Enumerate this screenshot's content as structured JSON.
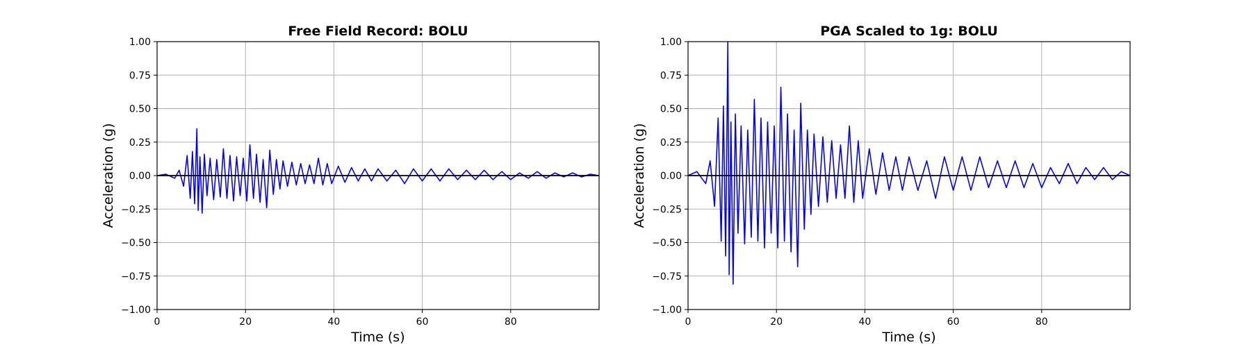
{
  "chart_data": [
    {
      "type": "line",
      "title": "Free Field Record: BOLU",
      "xlabel": "Time (s)",
      "ylabel": "Acceleration (g)",
      "xlim": [
        0,
        100
      ],
      "ylim": [
        -1.0,
        1.0
      ],
      "xticks": [
        0,
        20,
        40,
        60,
        80
      ],
      "xtick_labels": [
        "0",
        "20",
        "40",
        "60",
        "80"
      ],
      "yticks": [
        -1.0,
        -0.75,
        -0.5,
        -0.25,
        0.0,
        0.25,
        0.5,
        0.75,
        1.0
      ],
      "ytick_labels": [
        "−1.00",
        "−0.75",
        "−0.50",
        "−0.25",
        "0.00",
        "0.25",
        "0.50",
        "0.75",
        "1.00"
      ],
      "grid": true,
      "series": [
        {
          "color": "#0000ff",
          "x": [
            0,
            2,
            4,
            5,
            6,
            6.8,
            7.5,
            8,
            8.5,
            9,
            9.3,
            9.7,
            10.2,
            10.7,
            11.3,
            12,
            12.8,
            13.5,
            14.3,
            15,
            15.8,
            16.5,
            17.3,
            18,
            18.8,
            19.5,
            20.3,
            21,
            21.8,
            22.5,
            23.3,
            24,
            24.8,
            25.5,
            26.3,
            27,
            27.8,
            28.5,
            29.5,
            30.5,
            31.5,
            32.5,
            33.5,
            34.5,
            35.5,
            36.5,
            37.5,
            38.5,
            39.5,
            41,
            42.5,
            44,
            45.5,
            47,
            48.5,
            50,
            52,
            54,
            56,
            58,
            60,
            62,
            64,
            66,
            68,
            70,
            72,
            74,
            76,
            78,
            80,
            82,
            84,
            86,
            88,
            90,
            92,
            94,
            96,
            98,
            100
          ],
          "y": [
            0,
            0.01,
            -0.02,
            0.04,
            -0.08,
            0.15,
            -0.17,
            0.18,
            -0.21,
            0.35,
            -0.26,
            0.14,
            -0.28,
            0.16,
            -0.15,
            0.13,
            -0.18,
            0.12,
            -0.16,
            0.2,
            -0.17,
            0.15,
            -0.19,
            0.14,
            -0.15,
            0.13,
            -0.19,
            0.23,
            -0.17,
            0.16,
            -0.2,
            0.12,
            -0.24,
            0.19,
            -0.14,
            0.12,
            -0.1,
            0.11,
            -0.08,
            0.1,
            -0.07,
            0.09,
            -0.06,
            0.08,
            -0.06,
            0.13,
            -0.07,
            0.09,
            -0.06,
            0.07,
            -0.05,
            0.06,
            -0.04,
            0.05,
            -0.04,
            0.05,
            -0.04,
            0.04,
            -0.06,
            0.05,
            -0.04,
            0.05,
            -0.04,
            0.05,
            -0.03,
            0.04,
            -0.03,
            0.04,
            -0.03,
            0.03,
            -0.03,
            0.02,
            -0.02,
            0.03,
            -0.02,
            0.02,
            -0.01,
            0.02,
            -0.01,
            0.01,
            0
          ]
        }
      ]
    },
    {
      "type": "line",
      "title": "PGA Scaled to 1g: BOLU",
      "xlabel": "Time (s)",
      "ylabel": "Acceleration (g)",
      "xlim": [
        0,
        100
      ],
      "ylim": [
        -1.0,
        1.0
      ],
      "xticks": [
        0,
        20,
        40,
        60,
        80
      ],
      "xtick_labels": [
        "0",
        "20",
        "40",
        "60",
        "80"
      ],
      "yticks": [
        -1.0,
        -0.75,
        -0.5,
        -0.25,
        0.0,
        0.25,
        0.5,
        0.75,
        1.0
      ],
      "ytick_labels": [
        "−1.00",
        "−0.75",
        "−0.50",
        "−0.25",
        "0.00",
        "0.25",
        "0.50",
        "0.75",
        "1.00"
      ],
      "grid": true,
      "series": [
        {
          "color": "#0000ff",
          "x": [
            0,
            2,
            4,
            5,
            6,
            6.8,
            7.5,
            8,
            8.5,
            9,
            9.3,
            9.7,
            10.2,
            10.7,
            11.3,
            12,
            12.8,
            13.5,
            14.3,
            15,
            15.8,
            16.5,
            17.3,
            18,
            18.8,
            19.5,
            20.3,
            21,
            21.8,
            22.5,
            23.3,
            24,
            24.8,
            25.5,
            26.3,
            27,
            27.8,
            28.5,
            29.5,
            30.5,
            31.5,
            32.5,
            33.5,
            34.5,
            35.5,
            36.5,
            37.5,
            38.5,
            39.5,
            41,
            42.5,
            44,
            45.5,
            47,
            48.5,
            50,
            52,
            54,
            56,
            58,
            60,
            62,
            64,
            66,
            68,
            70,
            72,
            74,
            76,
            78,
            80,
            82,
            84,
            86,
            88,
            90,
            92,
            94,
            96,
            98,
            100
          ],
          "y": [
            0,
            0.03,
            -0.06,
            0.11,
            -0.23,
            0.43,
            -0.49,
            0.52,
            -0.6,
            1.0,
            -0.74,
            0.4,
            -0.81,
            0.46,
            -0.43,
            0.37,
            -0.51,
            0.34,
            -0.46,
            0.57,
            -0.49,
            0.43,
            -0.54,
            0.4,
            -0.43,
            0.37,
            -0.54,
            0.66,
            -0.49,
            0.46,
            -0.57,
            0.34,
            -0.68,
            0.54,
            -0.4,
            0.34,
            -0.29,
            0.31,
            -0.23,
            0.29,
            -0.2,
            0.26,
            -0.17,
            0.23,
            -0.17,
            0.37,
            -0.2,
            0.26,
            -0.17,
            0.2,
            -0.14,
            0.17,
            -0.11,
            0.14,
            -0.11,
            0.14,
            -0.11,
            0.11,
            -0.17,
            0.14,
            -0.11,
            0.14,
            -0.11,
            0.14,
            -0.09,
            0.11,
            -0.09,
            0.11,
            -0.09,
            0.09,
            -0.09,
            0.06,
            -0.06,
            0.09,
            -0.06,
            0.06,
            -0.03,
            0.06,
            -0.03,
            0.03,
            0
          ]
        }
      ]
    }
  ]
}
